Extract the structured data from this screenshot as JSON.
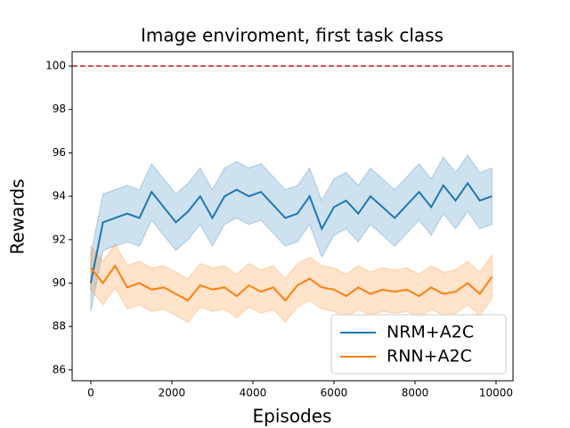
{
  "chart_data": {
    "type": "line",
    "title": "Image enviroment, first task class",
    "x_label": "Episodes",
    "y_label": "Rewards",
    "x": [
      0,
      300,
      600,
      900,
      1200,
      1500,
      1800,
      2100,
      2400,
      2700,
      3000,
      3300,
      3600,
      3900,
      4200,
      4500,
      4800,
      5100,
      5400,
      5700,
      6000,
      6300,
      6600,
      6900,
      7200,
      7500,
      7800,
      8100,
      8400,
      8700,
      9000,
      9300,
      9600,
      9900
    ],
    "series": [
      {
        "name": "NRM+A2C",
        "color": "#1f77b4",
        "values": [
          90,
          92.8,
          93,
          93.2,
          93,
          94.2,
          93.5,
          92.8,
          93.3,
          94,
          93,
          94,
          94.3,
          94,
          94.2,
          93.6,
          93,
          93.2,
          94,
          92.5,
          93.5,
          93.8,
          93.2,
          94,
          93.5,
          93,
          93.6,
          94.2,
          93.5,
          94.5,
          93.8,
          94.6,
          93.8,
          94
        ],
        "lower": [
          88.7,
          91.5,
          91.7,
          91.9,
          91.7,
          92.9,
          92.2,
          91.5,
          92,
          92.7,
          91.7,
          92.7,
          93,
          92.7,
          92.9,
          92.3,
          91.7,
          91.9,
          92.7,
          91.2,
          92.2,
          92.5,
          91.9,
          92.7,
          92.2,
          91.7,
          92.3,
          92.9,
          92.2,
          93.2,
          92.5,
          93.3,
          92.5,
          92.7
        ],
        "upper": [
          91.3,
          94.1,
          94.3,
          94.5,
          94.3,
          95.5,
          94.8,
          94.1,
          94.6,
          95.3,
          94.3,
          95.3,
          95.6,
          95.3,
          95.5,
          94.9,
          94.3,
          94.5,
          95.3,
          93.8,
          94.8,
          95.1,
          94.5,
          95.3,
          94.8,
          94.3,
          94.9,
          95.5,
          94.8,
          95.8,
          95.1,
          95.9,
          95.1,
          95.3
        ]
      },
      {
        "name": "RNN+A2C",
        "color": "#ff7f0e",
        "values": [
          90.7,
          90,
          90.8,
          89.8,
          90,
          89.7,
          89.8,
          89.5,
          89.2,
          89.9,
          89.7,
          89.8,
          89.4,
          89.9,
          89.6,
          89.8,
          89.2,
          89.9,
          90.2,
          89.8,
          89.7,
          89.4,
          89.8,
          89.5,
          89.7,
          89.6,
          89.7,
          89.4,
          89.8,
          89.5,
          89.6,
          90,
          89.5,
          90.3
        ],
        "lower": [
          89.7,
          89,
          89.8,
          88.8,
          89,
          88.7,
          88.8,
          88.5,
          88.2,
          88.9,
          88.7,
          88.8,
          88.4,
          88.9,
          88.6,
          88.8,
          88.2,
          88.9,
          89.2,
          88.8,
          88.7,
          88.4,
          88.8,
          88.5,
          88.7,
          88.6,
          88.7,
          88.4,
          88.8,
          88.5,
          88.6,
          89,
          88.5,
          89.3
        ],
        "upper": [
          91.7,
          91,
          91.8,
          90.8,
          91,
          90.7,
          90.8,
          90.5,
          90.2,
          90.9,
          90.7,
          90.8,
          90.4,
          90.9,
          90.6,
          90.8,
          90.2,
          90.9,
          91.2,
          90.8,
          90.7,
          90.4,
          90.8,
          90.5,
          90.7,
          90.6,
          90.7,
          90.4,
          90.8,
          90.5,
          90.6,
          91,
          90.5,
          91.3
        ]
      }
    ],
    "hline": {
      "value": 100,
      "color": "#d62728"
    },
    "xlim": [
      -460,
      10418
    ],
    "ylim": [
      85.5,
      100.66
    ],
    "xticks": [
      0,
      2000,
      4000,
      6000,
      8000,
      10000
    ],
    "yticks": [
      86,
      88,
      90,
      92,
      94,
      96,
      98,
      100
    ],
    "legend": "lower right"
  }
}
